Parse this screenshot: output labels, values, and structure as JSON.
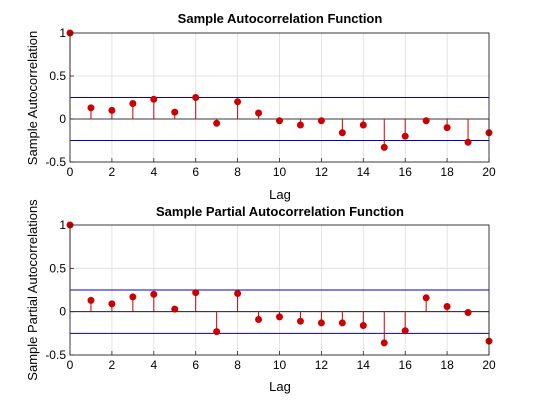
{
  "chart_data": [
    {
      "type": "stem",
      "title": "Sample Autocorrelation Function",
      "xlabel": "Lag",
      "ylabel": "Sample Autocorrelation",
      "xlim": [
        0,
        20
      ],
      "ylim": [
        -0.5,
        1
      ],
      "xticks": [
        "0",
        "2",
        "4",
        "6",
        "8",
        "10",
        "12",
        "14",
        "16",
        "18",
        "20"
      ],
      "yticks": [
        "-0.5",
        "0",
        "0.5",
        "1"
      ],
      "grid": true,
      "bounds": [
        0.25,
        -0.25
      ],
      "x": [
        0,
        1,
        2,
        3,
        4,
        5,
        6,
        7,
        8,
        9,
        10,
        11,
        12,
        13,
        14,
        15,
        16,
        17,
        18,
        19,
        20
      ],
      "values": [
        1.0,
        0.13,
        0.1,
        0.18,
        0.23,
        0.08,
        0.25,
        -0.05,
        0.2,
        0.07,
        -0.02,
        -0.07,
        -0.02,
        -0.16,
        -0.07,
        -0.33,
        -0.2,
        -0.02,
        -0.1,
        -0.27,
        -0.16
      ],
      "colors": {
        "stem": "#cc0000",
        "bound": "#0000cc",
        "zero": "#000000"
      }
    },
    {
      "type": "stem",
      "title": "Sample Partial Autocorrelation Function",
      "xlabel": "Lag",
      "ylabel": "Sample Partial Autocorrelations",
      "xlim": [
        0,
        20
      ],
      "ylim": [
        -0.5,
        1
      ],
      "xticks": [
        "0",
        "2",
        "4",
        "6",
        "8",
        "10",
        "12",
        "14",
        "16",
        "18",
        "20"
      ],
      "yticks": [
        "-0.5",
        "0",
        "0.5",
        "1"
      ],
      "grid": true,
      "bounds": [
        0.25,
        -0.25
      ],
      "x": [
        0,
        1,
        2,
        3,
        4,
        5,
        6,
        7,
        8,
        9,
        10,
        11,
        12,
        13,
        14,
        15,
        16,
        17,
        18,
        19,
        20
      ],
      "values": [
        1.0,
        0.13,
        0.09,
        0.17,
        0.2,
        0.03,
        0.22,
        -0.23,
        0.21,
        -0.09,
        -0.06,
        -0.11,
        -0.13,
        -0.13,
        -0.16,
        -0.36,
        -0.22,
        0.16,
        0.06,
        -0.01,
        -0.34
      ],
      "colors": {
        "stem": "#cc0000",
        "bound": "#0000cc",
        "zero": "#000000"
      }
    }
  ]
}
